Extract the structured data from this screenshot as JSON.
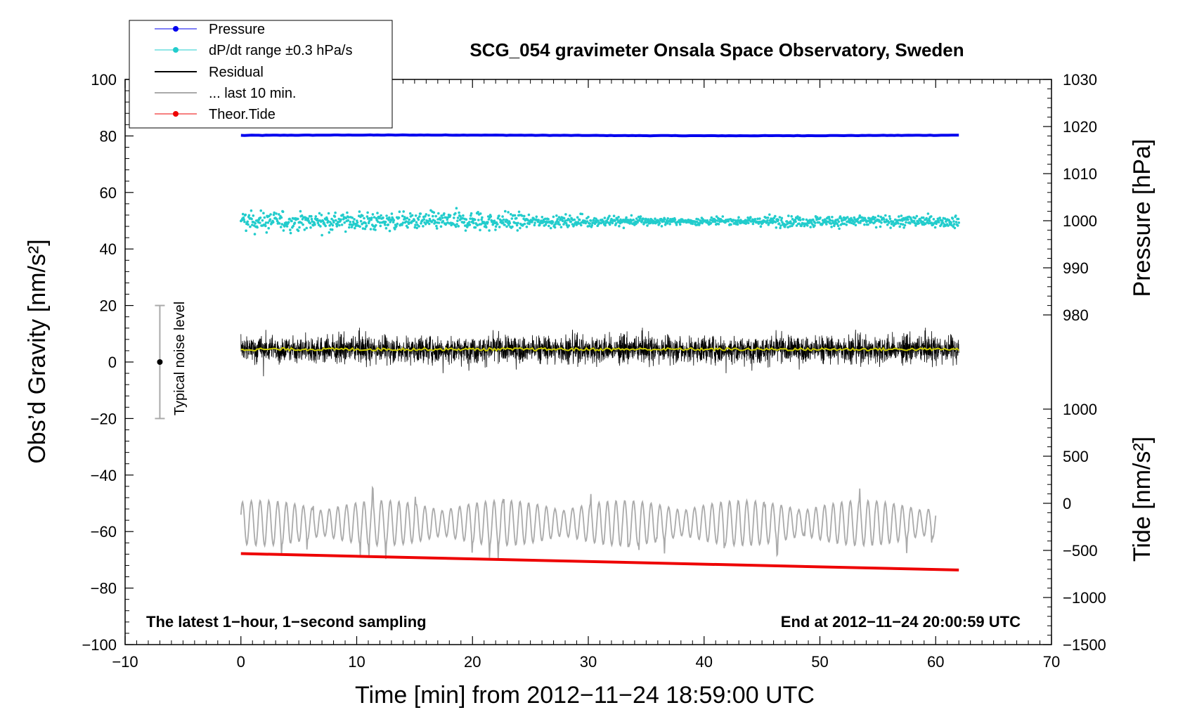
{
  "chart_data": {
    "type": "line",
    "title": "SCG_054 gravimeter Onsala Space Observatory, Sweden",
    "xlabel": "Time [min] from 2012−11−24 18:59:00 UTC",
    "ylabel_left": "Obs’d Gravity [nm/s²]",
    "ylabel_pressure": "Pressure [hPa]",
    "ylabel_tide": "Tide [nm/s²]",
    "xlim": [
      -10,
      70
    ],
    "ylim_left": [
      -100,
      100
    ],
    "pressure_axis": {
      "range": [
        970,
        1030
      ],
      "ticks": [
        980,
        990,
        1000,
        1010,
        1020,
        1030
      ]
    },
    "tide_axis": {
      "range": [
        -1500,
        1500
      ],
      "ticks": [
        -1500,
        -1000,
        -500,
        0,
        500,
        1000
      ]
    },
    "x_ticks": [
      -10,
      0,
      10,
      20,
      30,
      40,
      50,
      60,
      70
    ],
    "x_tick_labels": [
      "−10",
      "0",
      "10",
      "20",
      "30",
      "40",
      "50",
      "60",
      "70"
    ],
    "y_ticks": [
      -100,
      -80,
      -60,
      -40,
      -20,
      0,
      20,
      40,
      60,
      80,
      100
    ],
    "y_tick_labels": [
      "−100",
      "−80",
      "−60",
      "−40",
      "−20",
      "0",
      "20",
      "40",
      "60",
      "80",
      "100"
    ],
    "pressure_tick_labels": [
      "980",
      "990",
      "1000",
      "1010",
      "1020",
      "1030"
    ],
    "tide_tick_labels": [
      "−1500",
      "−1000",
      "−500",
      "0",
      "500",
      "1000"
    ],
    "series": [
      {
        "name": "Pressure",
        "color": "#0000ee",
        "style": "line",
        "x_range": [
          0,
          62
        ],
        "level": 80.2
      },
      {
        "name": "dP/dt range ±0.3 hPa/s",
        "color": "#22cccc",
        "style": "scatter",
        "x_range": [
          0,
          62
        ],
        "level": 49.8,
        "spread": 2.5
      },
      {
        "name": "Residual",
        "color": "#000000",
        "style": "line",
        "x_range": [
          0,
          62
        ],
        "level": 4.5,
        "spread": 8
      },
      {
        "name": "... last 10 min.",
        "color": "#aaaaaa",
        "style": "line",
        "x_range": [
          0,
          60
        ],
        "level": -57,
        "spread": 8
      },
      {
        "name": "Theor.Tide",
        "color": "#ee0000",
        "style": "line",
        "x": [
          0,
          62
        ],
        "y": [
          -67.8,
          -73.6
        ]
      }
    ],
    "running_mean": {
      "color": "#cccc00",
      "level": 4.5
    },
    "noise_indicator": {
      "label": "Typical noise level",
      "x": -7,
      "center": 0,
      "range": [
        -20,
        20
      ]
    },
    "annotations": {
      "bottom_left": "The latest 1−hour, 1−second sampling",
      "bottom_right": "End at 2012−11−24 20:00:59 UTC"
    },
    "legend_position": "top-left",
    "grid": false
  }
}
